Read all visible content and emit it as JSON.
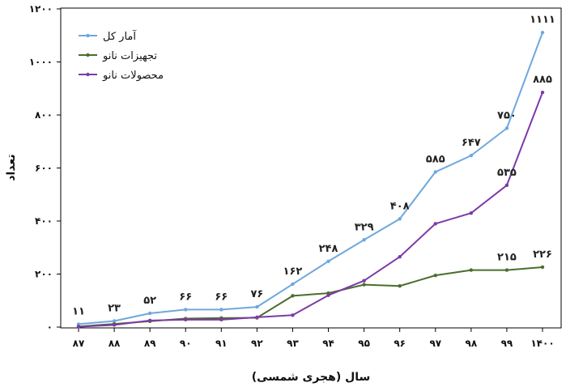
{
  "chart_data": {
    "type": "line",
    "title": "",
    "xlabel": "سال (هجری شمسی)",
    "ylabel": "تعداد",
    "ylim": [
      0,
      1200
    ],
    "y_ticks": [
      {
        "value": 0,
        "label": "۰"
      },
      {
        "value": 200,
        "label": "۲۰۰"
      },
      {
        "value": 400,
        "label": "۴۰۰"
      },
      {
        "value": 600,
        "label": "۶۰۰"
      },
      {
        "value": 800,
        "label": "۸۰۰"
      },
      {
        "value": 1000,
        "label": "۱۰۰۰"
      },
      {
        "value": 1200,
        "label": "۱۲۰۰"
      }
    ],
    "categories": [
      "۸۷",
      "۸۸",
      "۸۹",
      "۹۰",
      "۹۱",
      "۹۲",
      "۹۳",
      "۹۴",
      "۹۵",
      "۹۶",
      "۹۷",
      "۹۸",
      "۹۹",
      "۱۴۰۰"
    ],
    "grid": false,
    "legend_position": "top-left",
    "series": [
      {
        "name": "آمار کل",
        "color": "#6fa8dc",
        "values": [
          11,
          23,
          52,
          66,
          66,
          76,
          162,
          248,
          329,
          408,
          585,
          647,
          750,
          1111
        ]
      },
      {
        "name": "تجهیزات نانو",
        "color": "#4a6e2c",
        "values": [
          2,
          12,
          22,
          32,
          34,
          35,
          118,
          128,
          160,
          155,
          195,
          215,
          215,
          226
        ]
      },
      {
        "name": "محصولات نانو",
        "color": "#7d3aa8",
        "values": [
          1,
          8,
          25,
          28,
          28,
          37,
          45,
          120,
          175,
          265,
          390,
          430,
          535,
          885
        ]
      }
    ],
    "annotations": [
      {
        "series": 0,
        "index": 0,
        "text": "۱۱"
      },
      {
        "series": 0,
        "index": 1,
        "text": "۲۳"
      },
      {
        "series": 0,
        "index": 2,
        "text": "۵۲"
      },
      {
        "series": 0,
        "index": 3,
        "text": "۶۶"
      },
      {
        "series": 0,
        "index": 4,
        "text": "۶۶"
      },
      {
        "series": 0,
        "index": 5,
        "text": "۷۶"
      },
      {
        "series": 0,
        "index": 6,
        "text": "۱۶۲"
      },
      {
        "series": 0,
        "index": 7,
        "text": "۲۴۸"
      },
      {
        "series": 0,
        "index": 8,
        "text": "۳۲۹"
      },
      {
        "series": 0,
        "index": 9,
        "text": "۴۰۸"
      },
      {
        "series": 0,
        "index": 10,
        "text": "۵۸۵"
      },
      {
        "series": 0,
        "index": 11,
        "text": "۶۴۷"
      },
      {
        "series": 0,
        "index": 12,
        "text": "۷۵۰"
      },
      {
        "series": 0,
        "index": 13,
        "text": "۱۱۱۱"
      },
      {
        "series": 2,
        "index": 12,
        "text": "۵۳۵"
      },
      {
        "series": 2,
        "index": 13,
        "text": "۸۸۵"
      },
      {
        "series": 1,
        "index": 12,
        "text": "۲۱۵"
      },
      {
        "series": 1,
        "index": 13,
        "text": "۲۲۶"
      }
    ]
  }
}
